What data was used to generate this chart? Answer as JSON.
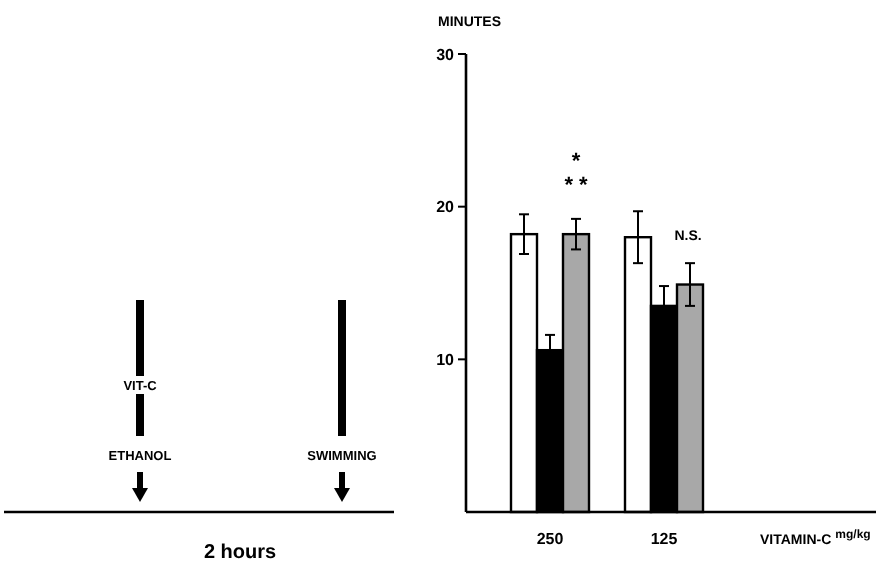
{
  "chart_data": {
    "type": "bar",
    "ylabel": "MINUTES",
    "xlabel": "VITAMIN-C $^{mg/kg}$",
    "categories": [
      "250",
      "125"
    ],
    "series": [
      {
        "color": "#ffffff",
        "values": [
          18.2,
          18.0
        ],
        "errors": [
          1.3,
          1.7
        ]
      },
      {
        "color": "#000000",
        "values": [
          10.6,
          13.5
        ],
        "errors": [
          1.0,
          1.3
        ]
      },
      {
        "color": "#a8a8a8",
        "values": [
          18.2,
          14.9
        ],
        "errors": [
          1.0,
          1.4
        ]
      }
    ],
    "ylim": [
      0,
      30
    ],
    "yticks": [
      10,
      20,
      30
    ],
    "grid": false,
    "annotations": [
      "*",
      "* *",
      "N.S.",
      "VIT-C",
      "ETHANOL",
      "SWIMMING",
      "2 hours"
    ]
  }
}
